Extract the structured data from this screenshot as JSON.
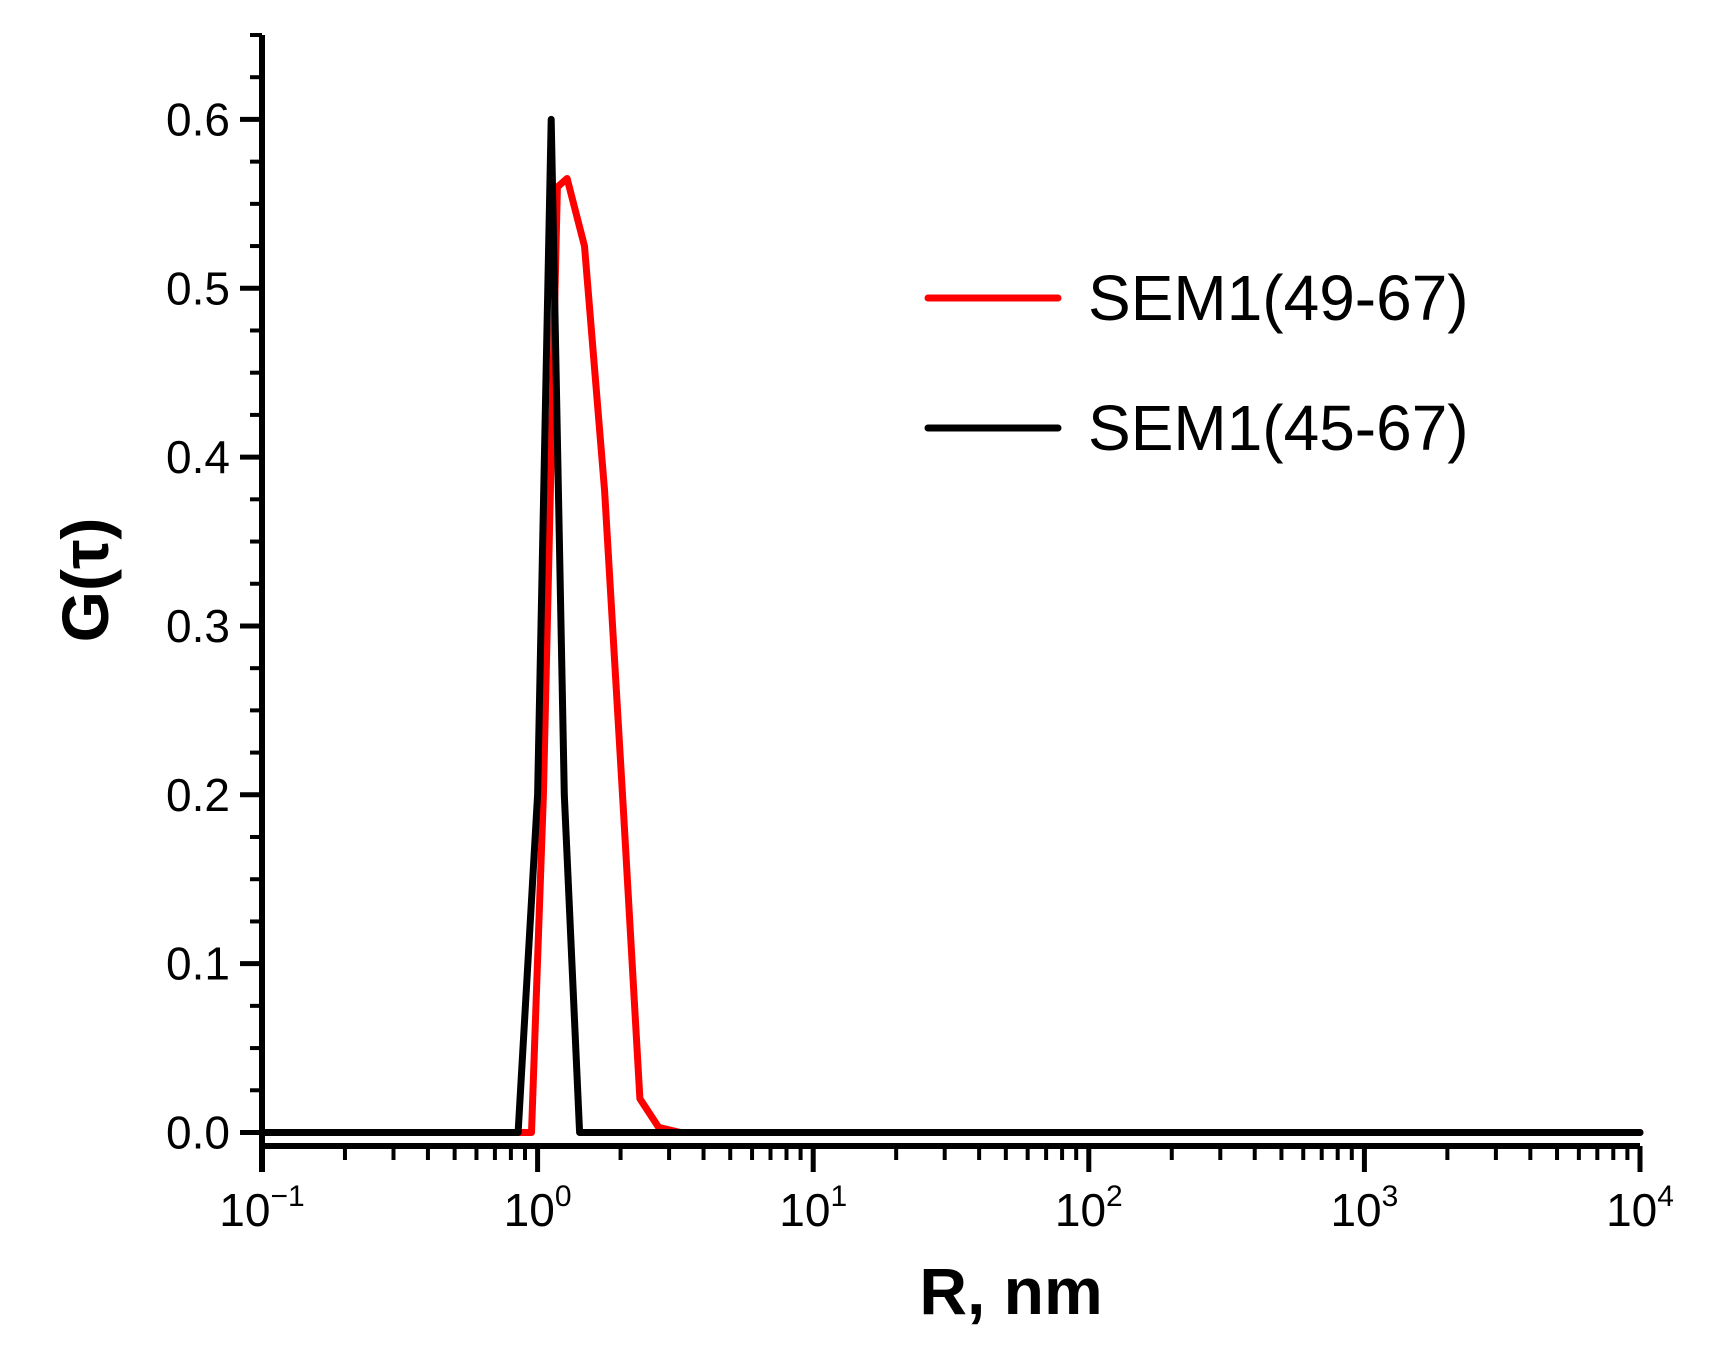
{
  "chart_data": {
    "type": "line",
    "title": "",
    "xlabel": "R, nm",
    "ylabel": "G(τ)",
    "x_scale": "log",
    "xlim": [
      0.1,
      10000
    ],
    "ylim": [
      -0.008,
      0.65
    ],
    "x_ticks": [
      {
        "value": 0.1,
        "base": "10",
        "exp": "−1"
      },
      {
        "value": 1,
        "base": "10",
        "exp": "0"
      },
      {
        "value": 10,
        "base": "10",
        "exp": "1"
      },
      {
        "value": 100,
        "base": "10",
        "exp": "2"
      },
      {
        "value": 1000,
        "base": "10",
        "exp": "3"
      },
      {
        "value": 10000,
        "base": "10",
        "exp": "4"
      }
    ],
    "y_ticks": [
      {
        "value": 0.0,
        "label": "0.0"
      },
      {
        "value": 0.1,
        "label": "0.1"
      },
      {
        "value": 0.2,
        "label": "0.2"
      },
      {
        "value": 0.3,
        "label": "0.3"
      },
      {
        "value": 0.4,
        "label": "0.4"
      },
      {
        "value": 0.5,
        "label": "0.5"
      },
      {
        "value": 0.6,
        "label": "0.6"
      }
    ],
    "grid": false,
    "legend_position": "top-right",
    "series": [
      {
        "name": "SEM1(49-67)",
        "color": "#ff0000",
        "points": [
          [
            0.1,
            0
          ],
          [
            0.95,
            0
          ],
          [
            1.05,
            0.2
          ],
          [
            1.18,
            0.56
          ],
          [
            1.28,
            0.565
          ],
          [
            1.48,
            0.525
          ],
          [
            1.75,
            0.38
          ],
          [
            2.05,
            0.19
          ],
          [
            2.35,
            0.02
          ],
          [
            2.75,
            0.003
          ],
          [
            3.3,
            0
          ],
          [
            12000,
            0
          ]
        ]
      },
      {
        "name": "SEM1(45-67)",
        "color": "#000000",
        "points": [
          [
            0.1,
            0
          ],
          [
            0.85,
            0
          ],
          [
            1.0,
            0.2
          ],
          [
            1.12,
            0.6
          ],
          [
            1.25,
            0.2
          ],
          [
            1.42,
            0.0
          ],
          [
            12000,
            0
          ]
        ]
      }
    ]
  }
}
